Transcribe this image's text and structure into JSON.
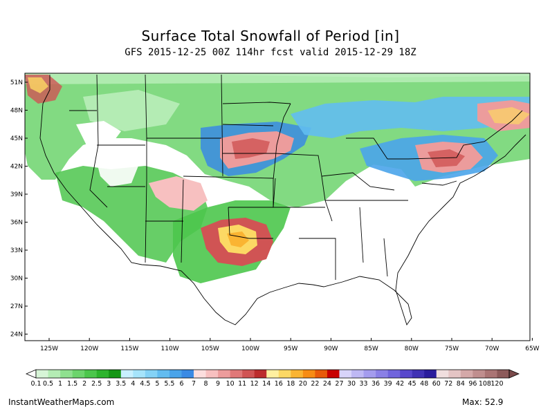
{
  "title": "Surface Total Snowfall of Period [in]",
  "subtitle": "GFS 2015-12-25 00Z 114hr fcst valid 2015-12-29 18Z",
  "lat_labels": [
    "51N",
    "48N",
    "45N",
    "42N",
    "39N",
    "36N",
    "33N",
    "30N",
    "27N",
    "24N"
  ],
  "lon_labels": [
    "125W",
    "120W",
    "115W",
    "110W",
    "105W",
    "100W",
    "95W",
    "90W",
    "85W",
    "80W",
    "75W",
    "70W",
    "65W"
  ],
  "colorbar": {
    "labels": [
      "0.1",
      "0.5",
      "1",
      "1.5",
      "2",
      "2.5",
      "3",
      "3.5",
      "4",
      "4.5",
      "5",
      "5.5",
      "6",
      "7",
      "8",
      "9",
      "10",
      "11",
      "12",
      "14",
      "16",
      "18",
      "20",
      "22",
      "24",
      "27",
      "30",
      "33",
      "36",
      "39",
      "42",
      "45",
      "48",
      "60",
      "72",
      "84",
      "96",
      "108",
      "120"
    ],
    "colors": [
      "#d7f5d7",
      "#b4ecb4",
      "#8fe08f",
      "#6cd46c",
      "#4cc64c",
      "#2db42d",
      "#149614",
      "#c8f0ff",
      "#a6e4fb",
      "#84d2f6",
      "#62bcf0",
      "#4aa4ea",
      "#3a8ae4",
      "#fcdede",
      "#f7c0c0",
      "#ec9c9c",
      "#e07878",
      "#d05454",
      "#bc2c2c",
      "#fff0a0",
      "#fcd864",
      "#fab432",
      "#f78c14",
      "#e85a0a",
      "#c80000",
      "#d8d4fa",
      "#beb8f4",
      "#a49cee",
      "#8a80e6",
      "#7064dc",
      "#5848cc",
      "#4032b4",
      "#2a1c9c",
      "#f0dede",
      "#e4c4c4",
      "#d4a8a8",
      "#c08e8e",
      "#aa7474",
      "#8c5a5a"
    ]
  },
  "credit": "InstantWeatherMaps.com",
  "max_label": "Max:",
  "max_value": "52.9"
}
